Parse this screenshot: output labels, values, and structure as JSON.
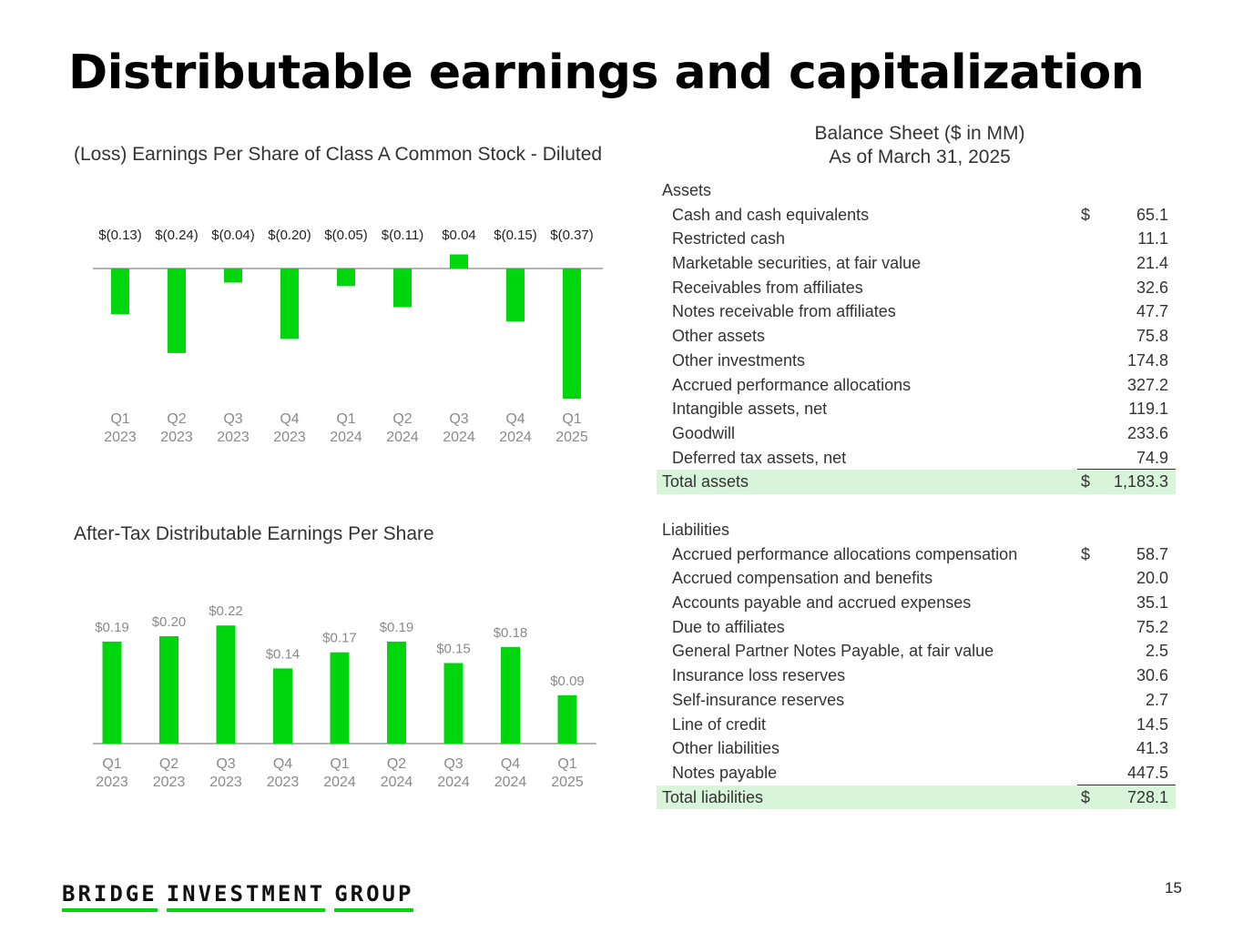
{
  "title": "Distributable earnings and capitalization",
  "page_number": "15",
  "logo": {
    "words": [
      "BRIDGE",
      "INVESTMENT",
      "GROUP"
    ]
  },
  "colors": {
    "bar": "#00d60d",
    "axis": "#9a9a9a",
    "total_fill": "#d9f5d9",
    "logo_underline": "#00d60d"
  },
  "chart_data": [
    {
      "type": "bar",
      "title": "(Loss) Earnings Per Share of Class A Common Stock - Diluted",
      "categories": [
        [
          "Q1",
          "2023"
        ],
        [
          "Q2",
          "2023"
        ],
        [
          "Q3",
          "2023"
        ],
        [
          "Q4",
          "2023"
        ],
        [
          "Q1",
          "2024"
        ],
        [
          "Q2",
          "2024"
        ],
        [
          "Q3",
          "2024"
        ],
        [
          "Q4",
          "2024"
        ],
        [
          "Q1",
          "2025"
        ]
      ],
      "values": [
        -0.13,
        -0.24,
        -0.04,
        -0.2,
        -0.05,
        -0.11,
        0.04,
        -0.15,
        -0.37
      ],
      "labels": [
        "$(0.13)",
        "$(0.24)",
        "$(0.04)",
        "$(0.20)",
        "$(0.05)",
        "$(0.11)",
        "$0.04",
        "$(0.15)",
        "$(0.37)"
      ],
      "xlabel": "",
      "ylabel": ""
    },
    {
      "type": "bar",
      "title": "After-Tax Distributable Earnings Per Share",
      "categories": [
        [
          "Q1",
          "2023"
        ],
        [
          "Q2",
          "2023"
        ],
        [
          "Q3",
          "2023"
        ],
        [
          "Q4",
          "2023"
        ],
        [
          "Q1",
          "2024"
        ],
        [
          "Q2",
          "2024"
        ],
        [
          "Q3",
          "2024"
        ],
        [
          "Q4",
          "2024"
        ],
        [
          "Q1",
          "2025"
        ]
      ],
      "values": [
        0.19,
        0.2,
        0.22,
        0.14,
        0.17,
        0.19,
        0.15,
        0.18,
        0.09
      ],
      "labels": [
        "$0.19",
        "$0.20",
        "$0.22",
        "$0.14",
        "$0.17",
        "$0.19",
        "$0.15",
        "$0.18",
        "$0.09"
      ],
      "xlabel": "",
      "ylabel": ""
    }
  ],
  "balance_sheet": {
    "heading_line1": "Balance Sheet ($ in MM)",
    "heading_line2": "As of March 31, 2025",
    "assets": {
      "section": "Assets",
      "items": [
        {
          "label": "Cash and cash equivalents",
          "currency": "$",
          "value": "65.1"
        },
        {
          "label": "Restricted cash",
          "currency": "",
          "value": "11.1"
        },
        {
          "label": "Marketable securities, at fair value",
          "currency": "",
          "value": "21.4"
        },
        {
          "label": "Receivables from affiliates",
          "currency": "",
          "value": "32.6"
        },
        {
          "label": "Notes receivable from affiliates",
          "currency": "",
          "value": "47.7"
        },
        {
          "label": "Other assets",
          "currency": "",
          "value": "75.8"
        },
        {
          "label": "Other investments",
          "currency": "",
          "value": "174.8"
        },
        {
          "label": "Accrued performance allocations",
          "currency": "",
          "value": "327.2"
        },
        {
          "label": "Intangible assets, net",
          "currency": "",
          "value": "119.1"
        },
        {
          "label": "Goodwill",
          "currency": "",
          "value": "233.6"
        },
        {
          "label": "Deferred tax assets, net",
          "currency": "",
          "value": "74.9"
        }
      ],
      "total": {
        "label": "Total assets",
        "currency": "$",
        "value": "1,183.3"
      }
    },
    "liabilities": {
      "section": "Liabilities",
      "items": [
        {
          "label": "Accrued performance allocations compensation",
          "currency": "$",
          "value": "58.7"
        },
        {
          "label": "Accrued compensation and benefits",
          "currency": "",
          "value": "20.0"
        },
        {
          "label": "Accounts payable and accrued expenses",
          "currency": "",
          "value": "35.1"
        },
        {
          "label": "Due to affiliates",
          "currency": "",
          "value": "75.2"
        },
        {
          "label": "General Partner Notes Payable, at fair value",
          "currency": "",
          "value": "2.5"
        },
        {
          "label": "Insurance loss reserves",
          "currency": "",
          "value": "30.6"
        },
        {
          "label": "Self-insurance reserves",
          "currency": "",
          "value": "2.7"
        },
        {
          "label": "Line of credit",
          "currency": "",
          "value": "14.5"
        },
        {
          "label": "Other liabilities",
          "currency": "",
          "value": "41.3"
        },
        {
          "label": "Notes payable",
          "currency": "",
          "value": "447.5"
        }
      ],
      "total": {
        "label": "Total liabilities",
        "currency": "$",
        "value": "728.1"
      }
    }
  }
}
